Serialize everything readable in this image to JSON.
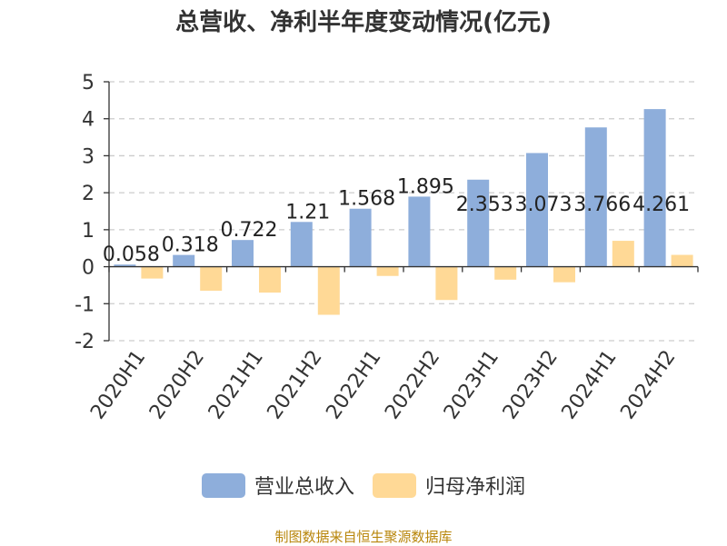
{
  "chart_data": {
    "type": "bar",
    "title": "总营收、净利半年度变动情况(亿元)",
    "categories": [
      "2020H1",
      "2020H2",
      "2021H1",
      "2021H2",
      "2022H1",
      "2022H2",
      "2023H1",
      "2023H2",
      "2024H1",
      "2024H2"
    ],
    "series": [
      {
        "name": "营业总收入",
        "color": "#8eaedb",
        "values": [
          0.058,
          0.318,
          0.722,
          1.21,
          1.568,
          1.895,
          2.353,
          3.073,
          3.766,
          4.261
        ],
        "labels": [
          "0.058",
          "0.318",
          "0.722",
          "1.21",
          "1.568",
          "1.895",
          "2.353",
          "3.073",
          "3.766",
          "4.261"
        ]
      },
      {
        "name": "归母净利润",
        "color": "#ffd996",
        "values": [
          -0.32,
          -0.65,
          -0.7,
          -1.3,
          -0.25,
          -0.9,
          -0.35,
          -0.42,
          0.7,
          0.32
        ]
      }
    ],
    "ylim": [
      -2,
      5
    ],
    "yticks": [
      "5",
      "4",
      "3",
      "2",
      "1",
      "0",
      "-1",
      "-2"
    ],
    "ytick_values": [
      5,
      4,
      3,
      2,
      1,
      0,
      -1,
      -2
    ],
    "grid": true,
    "legend": "bottom"
  },
  "source": "制图数据来自恒生聚源数据库"
}
